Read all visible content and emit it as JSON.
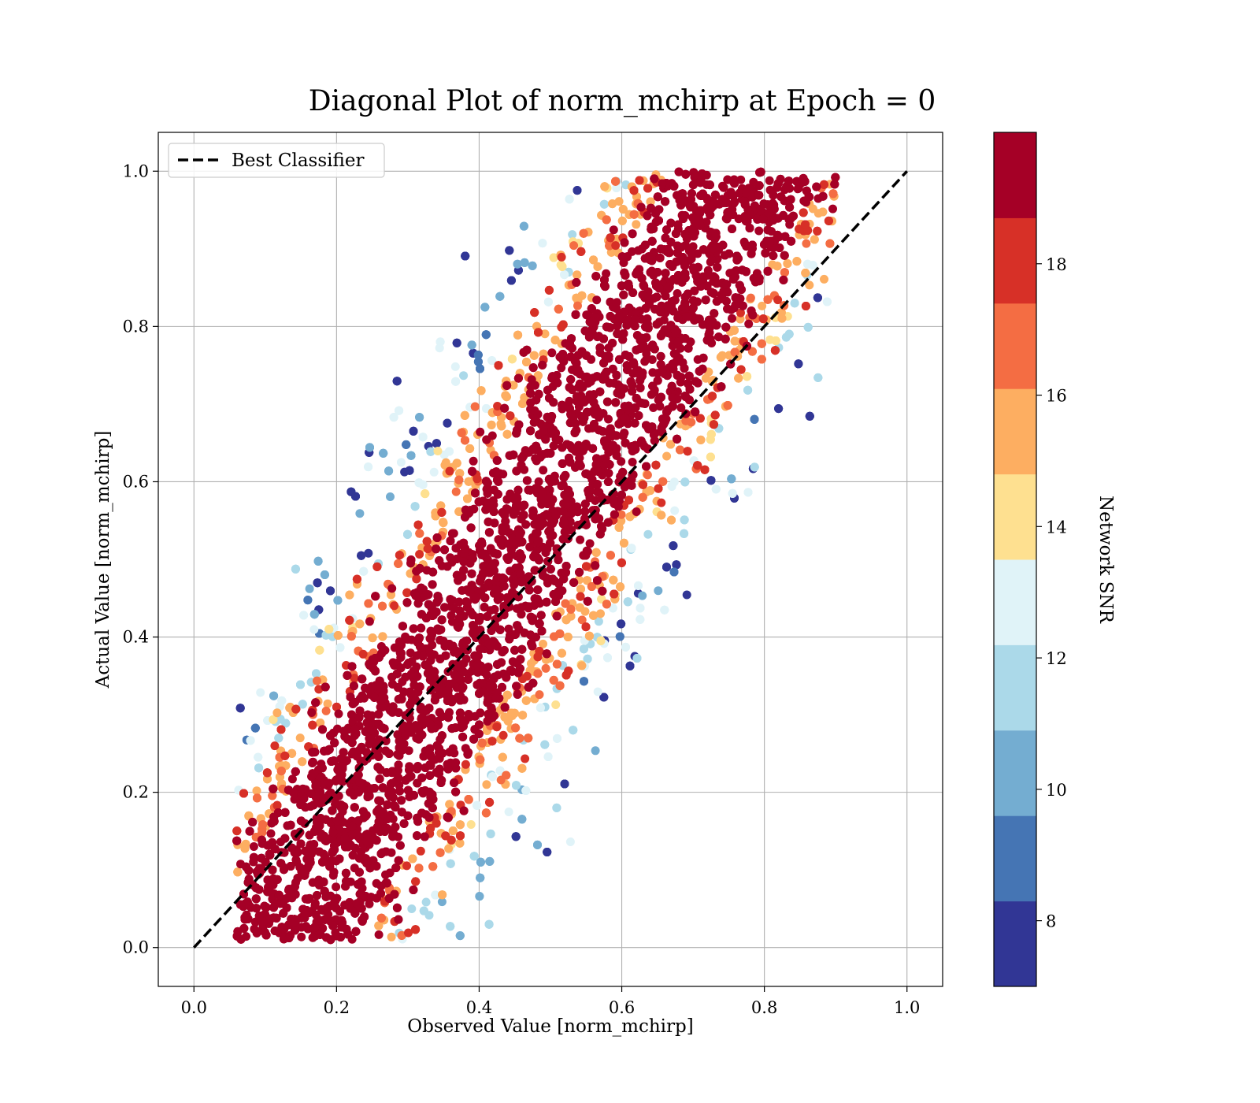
{
  "chart_data": {
    "type": "scatter",
    "title": "Diagonal Plot of norm_mchirp at Epoch = 0",
    "xlabel": "Observed Value [norm_mchirp]",
    "ylabel": "Actual Value [norm_mchirp]",
    "xlim": [
      -0.05,
      1.05
    ],
    "ylim": [
      -0.05,
      1.05
    ],
    "x_ticks": [
      "0.0",
      "0.2",
      "0.4",
      "0.6",
      "0.8",
      "1.0"
    ],
    "y_ticks": [
      "0.0",
      "0.2",
      "0.4",
      "0.6",
      "0.8",
      "1.0"
    ],
    "grid": true,
    "legend": {
      "position": "top-left",
      "entries": [
        "Best Classifier"
      ]
    },
    "reference_line": {
      "name": "Best Classifier",
      "style": "dashed",
      "color": "#000000",
      "x": [
        0,
        1
      ],
      "y": [
        0,
        1
      ]
    },
    "colorbar": {
      "label": "Network SNR",
      "range": [
        7,
        20
      ],
      "ticks": [
        "8",
        "10",
        "12",
        "14",
        "16",
        "18"
      ],
      "colors": [
        "#313695",
        "#4575b4",
        "#74add1",
        "#abd9e9",
        "#e0f3f8",
        "#fee090",
        "#fdae61",
        "#f46d43",
        "#d73027",
        "#a50026"
      ],
      "boundaries": [
        7,
        8,
        9,
        10,
        11,
        12,
        13,
        14,
        15,
        16,
        17,
        18,
        19,
        20
      ]
    },
    "point_clusters": [
      {
        "region": "dense diagonal band",
        "x_range": [
          0.08,
          0.84
        ],
        "y_range": [
          0.01,
          1.0
        ],
        "snr": "above 19"
      },
      {
        "region": "upper-left low-SNR spread",
        "x_range": [
          0.14,
          0.55
        ],
        "y_range": [
          0.4,
          0.98
        ],
        "snr": "7-13"
      },
      {
        "region": "lower-right low-SNR spread",
        "x_range": [
          0.25,
          0.62
        ],
        "y_range": [
          0.0,
          0.2
        ],
        "snr": "7-13"
      }
    ]
  }
}
